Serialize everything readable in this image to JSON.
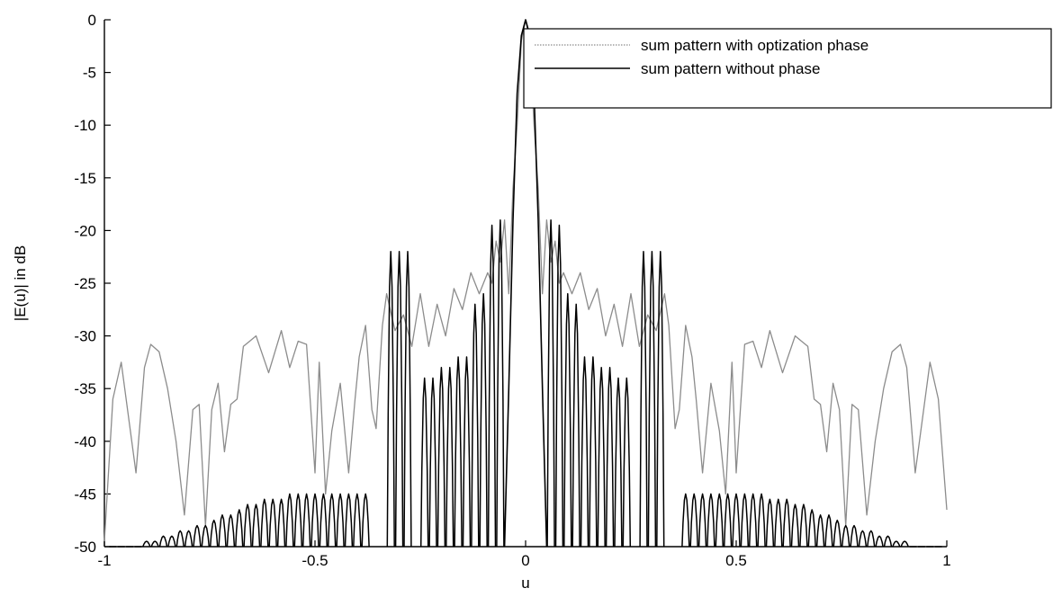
{
  "chart_data": {
    "type": "line",
    "title": "",
    "xlabel": "u",
    "ylabel": "|E(u)| in dB",
    "xlim": [
      -1,
      1
    ],
    "ylim": [
      -50,
      0
    ],
    "xticks": [
      -1,
      -0.5,
      0,
      0.5,
      1
    ],
    "xtick_labels": [
      "-1",
      "-0.5",
      "0",
      "0.5",
      "1"
    ],
    "yticks": [
      0,
      -5,
      -10,
      -15,
      -20,
      -25,
      -30,
      -35,
      -40,
      -45,
      -50
    ],
    "ytick_labels": [
      "0",
      "-5",
      "-10",
      "-15",
      "-20",
      "-25",
      "-30",
      "-35",
      "-40",
      "-45",
      "-50"
    ],
    "grid": false,
    "legend_position": "top-right",
    "series": [
      {
        "name": "sum pattern with optization phase",
        "color": "#8c8c8c",
        "style": "dotted",
        "x": [
          -1.0,
          -0.98,
          -0.96,
          -0.945,
          -0.925,
          -0.905,
          -0.89,
          -0.87,
          -0.85,
          -0.83,
          -0.81,
          -0.79,
          -0.775,
          -0.76,
          -0.745,
          -0.73,
          -0.715,
          -0.7,
          -0.685,
          -0.67,
          -0.64,
          -0.61,
          -0.58,
          -0.56,
          -0.54,
          -0.52,
          -0.5,
          -0.49,
          -0.475,
          -0.46,
          -0.44,
          -0.42,
          -0.405,
          -0.395,
          -0.38,
          -0.365,
          -0.355,
          -0.34,
          -0.33,
          -0.31,
          -0.29,
          -0.27,
          -0.25,
          -0.23,
          -0.21,
          -0.19,
          -0.17,
          -0.15,
          -0.13,
          -0.11,
          -0.09,
          -0.08,
          -0.07,
          -0.06,
          -0.05,
          -0.04,
          -0.03,
          -0.02,
          -0.01,
          0.0,
          0.01,
          0.02,
          0.03,
          0.04,
          0.05,
          0.06,
          0.07,
          0.08,
          0.09,
          0.11,
          0.13,
          0.15,
          0.17,
          0.19,
          0.21,
          0.23,
          0.25,
          0.27,
          0.29,
          0.31,
          0.33,
          0.34,
          0.355,
          0.365,
          0.38,
          0.395,
          0.405,
          0.42,
          0.44,
          0.46,
          0.475,
          0.49,
          0.5,
          0.52,
          0.54,
          0.56,
          0.58,
          0.61,
          0.64,
          0.67,
          0.685,
          0.7,
          0.715,
          0.73,
          0.745,
          0.76,
          0.775,
          0.79,
          0.81,
          0.83,
          0.85,
          0.87,
          0.89,
          0.905,
          0.925,
          0.945,
          0.96,
          0.98,
          1.0
        ],
        "y": [
          -49.5,
          -36,
          -32.5,
          -37,
          -43,
          -33,
          -30.8,
          -31.5,
          -35,
          -40,
          -47,
          -37,
          -36.5,
          -48,
          -37,
          -34.5,
          -41,
          -36.5,
          -36,
          -31,
          -30,
          -33.5,
          -29.5,
          -33,
          -30.5,
          -30.8,
          -43,
          -32.5,
          -45,
          -39,
          -34.5,
          -43,
          -36,
          -32,
          -29,
          -37,
          -38.8,
          -29,
          -26,
          -29.5,
          -28,
          -31,
          -26,
          -31,
          -27,
          -30,
          -25.5,
          -27.5,
          -24,
          -26,
          -24,
          -25,
          -21,
          -23,
          -19,
          -26,
          -16,
          -10,
          -2,
          0,
          -2,
          -10,
          -16,
          -26,
          -19,
          -23,
          -21,
          -25,
          -24,
          -26,
          -24,
          -27.5,
          -25.5,
          -30,
          -27,
          -31,
          -26,
          -31,
          -28,
          -29.5,
          -26,
          -29,
          -38.8,
          -37,
          -29,
          -32,
          -36,
          -43,
          -34.5,
          -39,
          -45,
          -32.5,
          -43,
          -30.8,
          -30.5,
          -33,
          -29.5,
          -33.5,
          -30,
          -31,
          -36,
          -36.5,
          -41,
          -34.5,
          -37,
          -48,
          -36.5,
          -37,
          -47,
          -40,
          -35,
          -31.5,
          -30.8,
          -33,
          -43,
          -37,
          -32.5,
          -36,
          -46.5
        ]
      },
      {
        "name": "sum pattern without phase",
        "color": "#000000",
        "style": "solid",
        "envelope_x": [
          -0.98,
          -0.96,
          -0.94,
          -0.92,
          -0.9,
          -0.88,
          -0.86,
          -0.84,
          -0.82,
          -0.8,
          -0.78,
          -0.76,
          -0.74,
          -0.72,
          -0.7,
          -0.68,
          -0.66,
          -0.64,
          -0.62,
          -0.6,
          -0.58,
          -0.56,
          -0.54,
          -0.52,
          -0.5,
          -0.48,
          -0.46,
          -0.44,
          -0.42,
          -0.4,
          -0.38,
          -0.32,
          -0.3,
          -0.28,
          -0.24,
          -0.22,
          -0.2,
          -0.18,
          -0.16,
          -0.14,
          -0.12,
          -0.1,
          -0.08,
          -0.06,
          0.06,
          0.08,
          0.1,
          0.12,
          0.14,
          0.16,
          0.18,
          0.2,
          0.22,
          0.24,
          0.28,
          0.3,
          0.32,
          0.38,
          0.4,
          0.42,
          0.44,
          0.46,
          0.48,
          0.5,
          0.52,
          0.54,
          0.56,
          0.58,
          0.6,
          0.62,
          0.64,
          0.66,
          0.68,
          0.7,
          0.72,
          0.74,
          0.76,
          0.78,
          0.8,
          0.82,
          0.84,
          0.86,
          0.88,
          0.9,
          0.92,
          0.94,
          0.96,
          0.98
        ],
        "envelope_y": [
          -50,
          -50,
          -50,
          -50,
          -49.5,
          -49.5,
          -49,
          -49,
          -48.5,
          -48.5,
          -48,
          -48,
          -47.5,
          -47,
          -47,
          -46.5,
          -46,
          -46,
          -45.5,
          -45.5,
          -45.5,
          -45,
          -45,
          -45,
          -45,
          -45,
          -45,
          -45,
          -45,
          -45,
          -45,
          -22,
          -22,
          -22,
          -34,
          -34,
          -33,
          -33,
          -32,
          -32,
          -27,
          -26,
          -19.5,
          -19,
          -19,
          -19.5,
          -26,
          -27,
          -32,
          -32,
          -33,
          -33,
          -34,
          -34,
          -22,
          -22,
          -22,
          -45,
          -45,
          -45,
          -45,
          -45,
          -45,
          -45,
          -45,
          -45,
          -45,
          -45.5,
          -45.5,
          -45.5,
          -46,
          -46,
          -46.5,
          -47,
          -47,
          -47.5,
          -48,
          -48,
          -48.5,
          -48.5,
          -49,
          -49,
          -49.5,
          -49.5,
          -50,
          -50,
          -50,
          -50
        ],
        "x": [
          -0.05,
          -0.04,
          -0.03,
          -0.02,
          -0.01,
          0.0,
          0.01,
          0.02,
          0.03,
          0.04,
          0.05
        ],
        "y": [
          -50,
          -35,
          -19,
          -7,
          -1.5,
          0,
          -1.5,
          -7,
          -19,
          -35,
          -50
        ]
      }
    ]
  }
}
